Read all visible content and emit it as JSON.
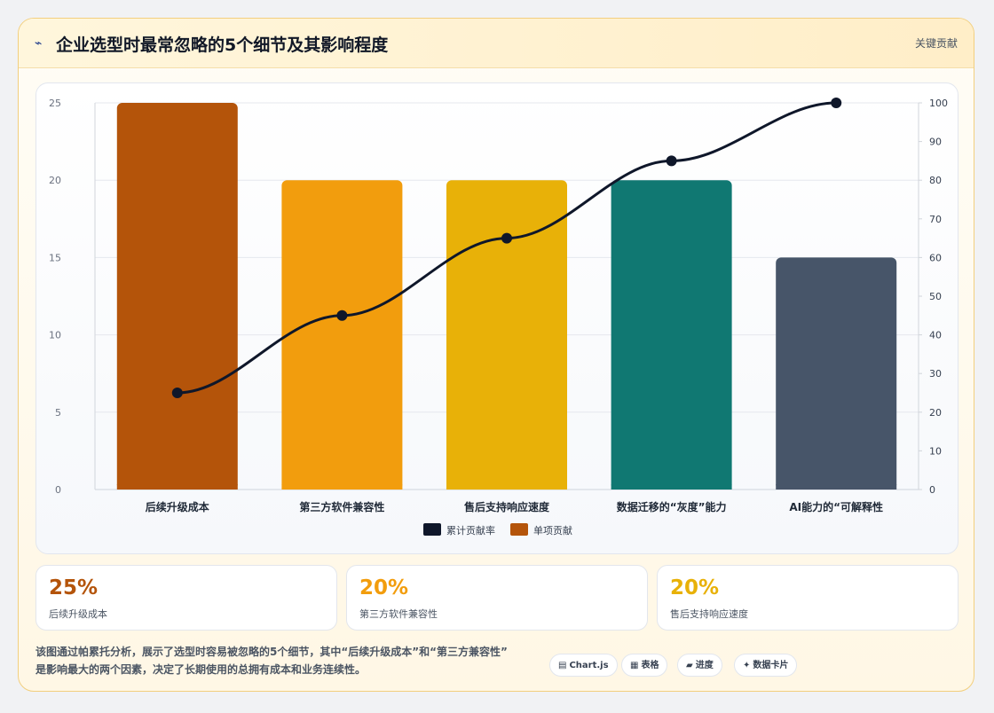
{
  "header": {
    "icon": "lightning-icon",
    "title": "企业选型时最常忽略的5个细节及其影响程度",
    "right_label": "关键贡献"
  },
  "chart_data": {
    "type": "bar",
    "categories": [
      "后续升级成本",
      "第三方软件兼容性",
      "售后支持响应速度",
      "数据迁移的“灰度”能力",
      "AI能力的“可解释性"
    ],
    "series": [
      {
        "name": "单项贡献",
        "type": "bar",
        "axis": "left",
        "values": [
          25,
          20,
          20,
          20,
          15
        ],
        "colors": [
          "#b4540a",
          "#f29d0d",
          "#e8b108",
          "#107872",
          "#475569"
        ]
      },
      {
        "name": "累计贡献率",
        "type": "line",
        "axis": "right",
        "values": [
          25,
          45,
          65,
          85,
          100
        ],
        "color": "#0f172a"
      }
    ],
    "y_left": {
      "min": 0,
      "max": 25,
      "ticks": [
        0,
        5,
        10,
        15,
        20,
        25
      ]
    },
    "y_right": {
      "min": 0,
      "max": 100,
      "ticks": [
        0,
        10,
        20,
        30,
        40,
        50,
        60,
        70,
        80,
        90,
        100
      ]
    },
    "grid": true,
    "legend": {
      "position": "bottom",
      "items": [
        {
          "label": "累计贡献率",
          "color": "#0f172a"
        },
        {
          "label": "单项贡献",
          "color": "#b4540a"
        }
      ]
    }
  },
  "stats": [
    {
      "value": "25%",
      "label": "后续升级成本",
      "color": "#b4540a"
    },
    {
      "value": "20%",
      "label": "第三方软件兼容性",
      "color": "#f29d0d"
    },
    {
      "value": "20%",
      "label": "售后支持响应速度",
      "color": "#e8b108"
    }
  ],
  "description": {
    "line1": "该图通过帕累托分析，展示了选型时容易被忽略的5个细节，其中“后续升级成本”和“第三方兼容性”",
    "line2": "是影响最大的两个因素，决定了长期使用的总拥有成本和业务连续性。"
  },
  "chips": [
    {
      "icon": "▤",
      "label": "Chart.js"
    },
    {
      "icon": "▦",
      "label": "表格"
    },
    {
      "icon": "▰",
      "label": "进度"
    },
    {
      "icon": "✦",
      "label": "数据卡片"
    }
  ]
}
